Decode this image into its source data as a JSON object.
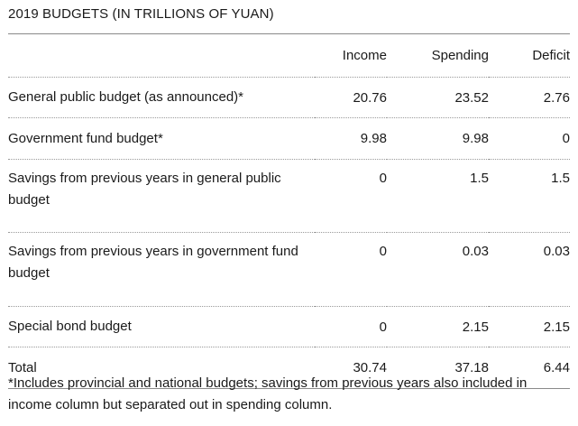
{
  "title": "2019 BUDGETS (IN TRILLIONS OF YUAN)",
  "columns": [
    "Income",
    "Spending",
    "Deficit"
  ],
  "rows": [
    {
      "label": "General public budget (as announced)*",
      "income": "20.76",
      "spending": "23.52",
      "deficit": "2.76"
    },
    {
      "label": "Government fund budget*",
      "income": "9.98",
      "spending": "9.98",
      "deficit": "0"
    },
    {
      "label": "Savings from previous years in general public budget",
      "income": "0",
      "spending": "1.5",
      "deficit": "1.5"
    },
    {
      "label": "Savings from previous years in government fund budget",
      "income": "0",
      "spending": "0.03",
      "deficit": "0.03"
    },
    {
      "label": "Special bond budget",
      "income": "0",
      "spending": "2.15",
      "deficit": "2.15"
    },
    {
      "label": "Total",
      "income": "30.74",
      "spending": "37.18",
      "deficit": "6.44"
    }
  ],
  "footnote": "*Includes provincial and national budgets; savings from previous years also included in income column but separated out in spending column."
}
